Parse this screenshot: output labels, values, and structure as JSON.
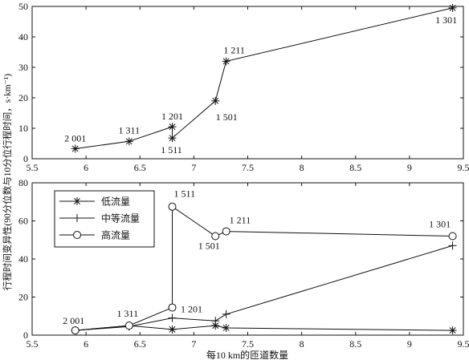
{
  "figure": {
    "ylabel_shared": "行程时间变异性(90分位数与10分位行程时间，s·km⁻¹)",
    "xlabel_shared": "每10 km的匝道数量"
  },
  "chart_data": [
    {
      "type": "line",
      "title": "",
      "xlabel": "",
      "ylabel": "",
      "xlim": [
        5.5,
        9.5
      ],
      "ylim": [
        0,
        50
      ],
      "x_ticks": [
        5.5,
        6,
        6.5,
        7,
        7.5,
        8,
        8.5,
        9,
        9.5
      ],
      "x_tick_labels": [
        "5.5",
        "6",
        "6.5",
        "7",
        "7.5",
        "8",
        "8.5",
        "9",
        "9.5"
      ],
      "y_ticks": [
        0,
        10,
        20,
        30,
        40,
        50
      ],
      "y_tick_labels": [
        "0",
        "10",
        "20",
        "30",
        "40",
        "50"
      ],
      "grid": false,
      "series": [
        {
          "marker": "asterisk",
          "x": [
            5.9,
            6.4,
            6.8,
            6.8,
            7.2,
            7.3,
            9.4
          ],
          "y": [
            3.3,
            5.7,
            10.5,
            6.8,
            19.0,
            32.0,
            49.5
          ]
        }
      ],
      "annotations": [
        {
          "text": "2 001",
          "x": 5.9,
          "y": 3.3
        },
        {
          "text": "1 311",
          "x": 6.4,
          "y": 5.7
        },
        {
          "text": "1 201",
          "x": 6.8,
          "y": 10.5
        },
        {
          "text": "1 511",
          "x": 6.8,
          "y": 6.8
        },
        {
          "text": "1 501",
          "x": 7.2,
          "y": 19.0
        },
        {
          "text": "1 211",
          "x": 7.3,
          "y": 32.0
        },
        {
          "text": "1 301",
          "x": 9.4,
          "y": 49.5
        }
      ]
    },
    {
      "type": "line",
      "title": "",
      "xlabel": "每10 km的匝道数量",
      "ylabel": "",
      "xlim": [
        5.5,
        9.5
      ],
      "ylim": [
        0,
        80
      ],
      "x_ticks": [
        5.5,
        6,
        6.5,
        7,
        7.5,
        8,
        8.5,
        9,
        9.5
      ],
      "x_tick_labels": [
        "5.5",
        "6",
        "6.5",
        "7",
        "7.5",
        "8",
        "8.5",
        "9",
        "9.5"
      ],
      "y_ticks": [
        0,
        20,
        40,
        60,
        80
      ],
      "y_tick_labels": [
        "0",
        "20",
        "40",
        "60",
        "80"
      ],
      "grid": false,
      "legend": "top-left",
      "series": [
        {
          "name": "低流量",
          "marker": "asterisk",
          "x": [
            5.9,
            6.4,
            6.8,
            7.2,
            7.3,
            9.4
          ],
          "y": [
            2.5,
            5.0,
            3.0,
            5.0,
            3.8,
            2.5
          ]
        },
        {
          "name": "中等流量",
          "marker": "plus",
          "x": [
            5.9,
            6.4,
            6.8,
            7.2,
            7.3,
            9.4
          ],
          "y": [
            2.5,
            4.5,
            9.0,
            7.5,
            11.0,
            47.0
          ]
        },
        {
          "name": "高流量",
          "marker": "circle",
          "x": [
            5.9,
            6.4,
            6.8,
            6.8,
            7.2,
            7.3,
            9.4
          ],
          "y": [
            2.5,
            5.0,
            14.5,
            67.5,
            52.0,
            54.5,
            52.0
          ]
        }
      ],
      "annotations": [
        {
          "text": "2 001",
          "x": 5.9,
          "y": 2.5
        },
        {
          "text": "1 311",
          "x": 6.4,
          "y": 5.0
        },
        {
          "text": "1 201",
          "x": 6.8,
          "y": 9.0
        },
        {
          "text": "1 511",
          "x": 6.8,
          "y": 67.5
        },
        {
          "text": "1 501",
          "x": 7.2,
          "y": 52.0
        },
        {
          "text": "1 211",
          "x": 7.3,
          "y": 54.5
        },
        {
          "text": "1 301",
          "x": 9.4,
          "y": 52.0
        }
      ]
    }
  ]
}
